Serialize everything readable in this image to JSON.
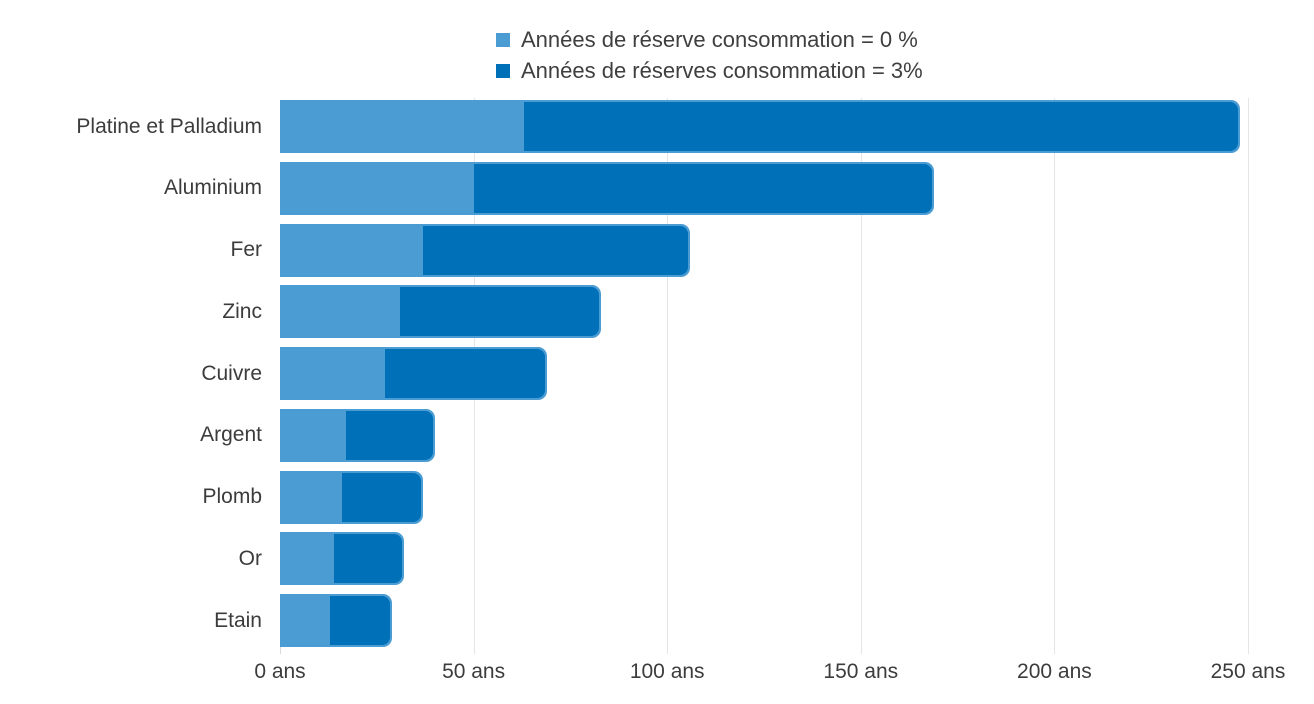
{
  "chart_data": {
    "type": "bar",
    "orientation": "horizontal",
    "stacked": true,
    "title": "",
    "categories": [
      "Platine et Palladium",
      "Aluminium",
      "Fer",
      "Zinc",
      "Cuivre",
      "Argent",
      "Plomb",
      "Or",
      "Etain"
    ],
    "series": [
      {
        "name": "Années de réserve consommation = 0 %",
        "color": "#4a9cd3",
        "values": [
          63,
          50,
          37,
          31,
          27,
          17,
          16,
          14,
          13
        ]
      },
      {
        "name": "Années de réserves consommation = 3%",
        "color": "#0070b8",
        "values": [
          185,
          119,
          69,
          52,
          42,
          23,
          21,
          18,
          16
        ]
      }
    ],
    "bar_totals": [
      248,
      169,
      106,
      83,
      69,
      40,
      37,
      32,
      29
    ],
    "xlabel": "",
    "ylabel": "",
    "xlim": [
      0,
      260
    ],
    "x_ticks": [
      0,
      50,
      100,
      150,
      200,
      250
    ],
    "x_tick_labels": [
      "0 ans",
      "50 ans",
      "100 ans",
      "150 ans",
      "200 ans",
      "250 ans"
    ],
    "unit": "ans",
    "grid": "vertical",
    "legend_position": "top-center",
    "colors": {
      "grid": "#e5e5e5",
      "text": "#3c3c3c",
      "background": "#ffffff"
    }
  }
}
